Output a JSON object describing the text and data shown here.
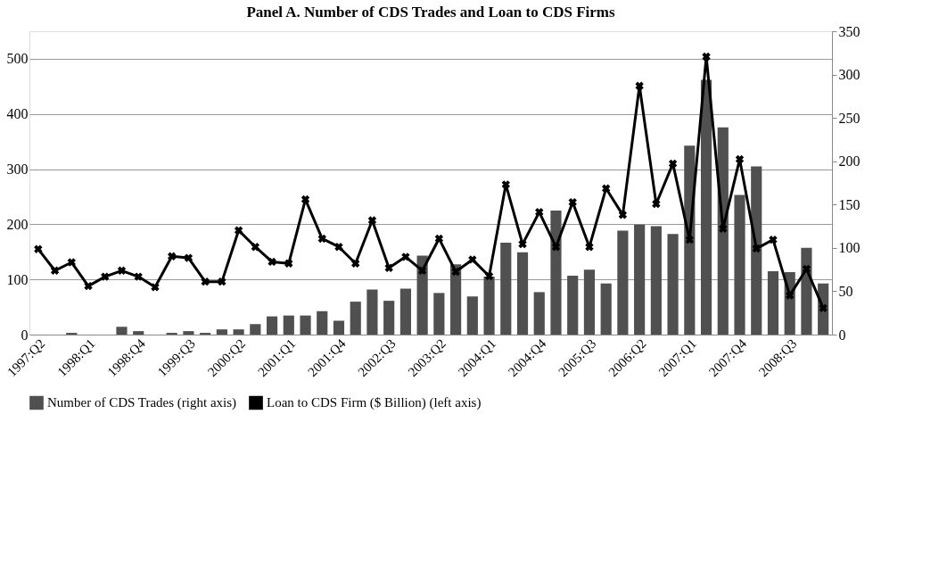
{
  "chart_data": {
    "type": "bar",
    "title": "Panel A. Number of CDS Trades and Loan to CDS Firms",
    "categories": [
      "1997:Q2",
      null,
      null,
      "1998:Q1",
      null,
      null,
      "1998:Q4",
      null,
      null,
      "1999:Q3",
      null,
      null,
      "2000:Q2",
      null,
      null,
      "2001:Q1",
      null,
      null,
      "2001:Q4",
      null,
      null,
      "2002:Q3",
      null,
      null,
      "2003:Q2",
      null,
      null,
      "2004:Q1",
      null,
      null,
      "2004:Q4",
      null,
      null,
      "2005:Q3",
      null,
      null,
      "2006:Q2",
      null,
      null,
      "2007:Q1",
      null,
      null,
      "2007:Q4",
      null,
      null,
      "2008:Q3",
      null,
      null
    ],
    "series": [
      {
        "name": "Number of CDS Trades (right axis)",
        "axis": "y2",
        "color": "#505050",
        "values": [
          0,
          0,
          2,
          0,
          0,
          9,
          4,
          0,
          2,
          4,
          2,
          6,
          6,
          12,
          21,
          22,
          22,
          27,
          16,
          38,
          52,
          39,
          53,
          91,
          48,
          81,
          44,
          67,
          106,
          95,
          49,
          143,
          68,
          75,
          59,
          120,
          127,
          125,
          116,
          218,
          294,
          239,
          161,
          194,
          73,
          72,
          100,
          59
        ]
      },
      {
        "name": "Loan to CDS Firm ($ Billion) (left axis)",
        "type": "line",
        "color": "#000000",
        "values": [
          155,
          116,
          131,
          88,
          105,
          116,
          105,
          86,
          142,
          139,
          96,
          96,
          189,
          159,
          132,
          129,
          245,
          174,
          159,
          129,
          207,
          121,
          141,
          116,
          174,
          114,
          136,
          106,
          272,
          164,
          222,
          159,
          240,
          159,
          265,
          217,
          451,
          237,
          310,
          172,
          504,
          192,
          318,
          156,
          172,
          71,
          119,
          48
        ]
      }
    ],
    "ylim": [
      0,
      550
    ],
    "yticks": [
      0,
      100,
      200,
      300,
      400,
      500
    ],
    "y2lim": [
      0,
      350
    ],
    "y2ticks": [
      0,
      50,
      100,
      150,
      200,
      250,
      300,
      350
    ],
    "grid": "y",
    "legend": "bottom",
    "marker": "cross",
    "line_style": "solid"
  }
}
